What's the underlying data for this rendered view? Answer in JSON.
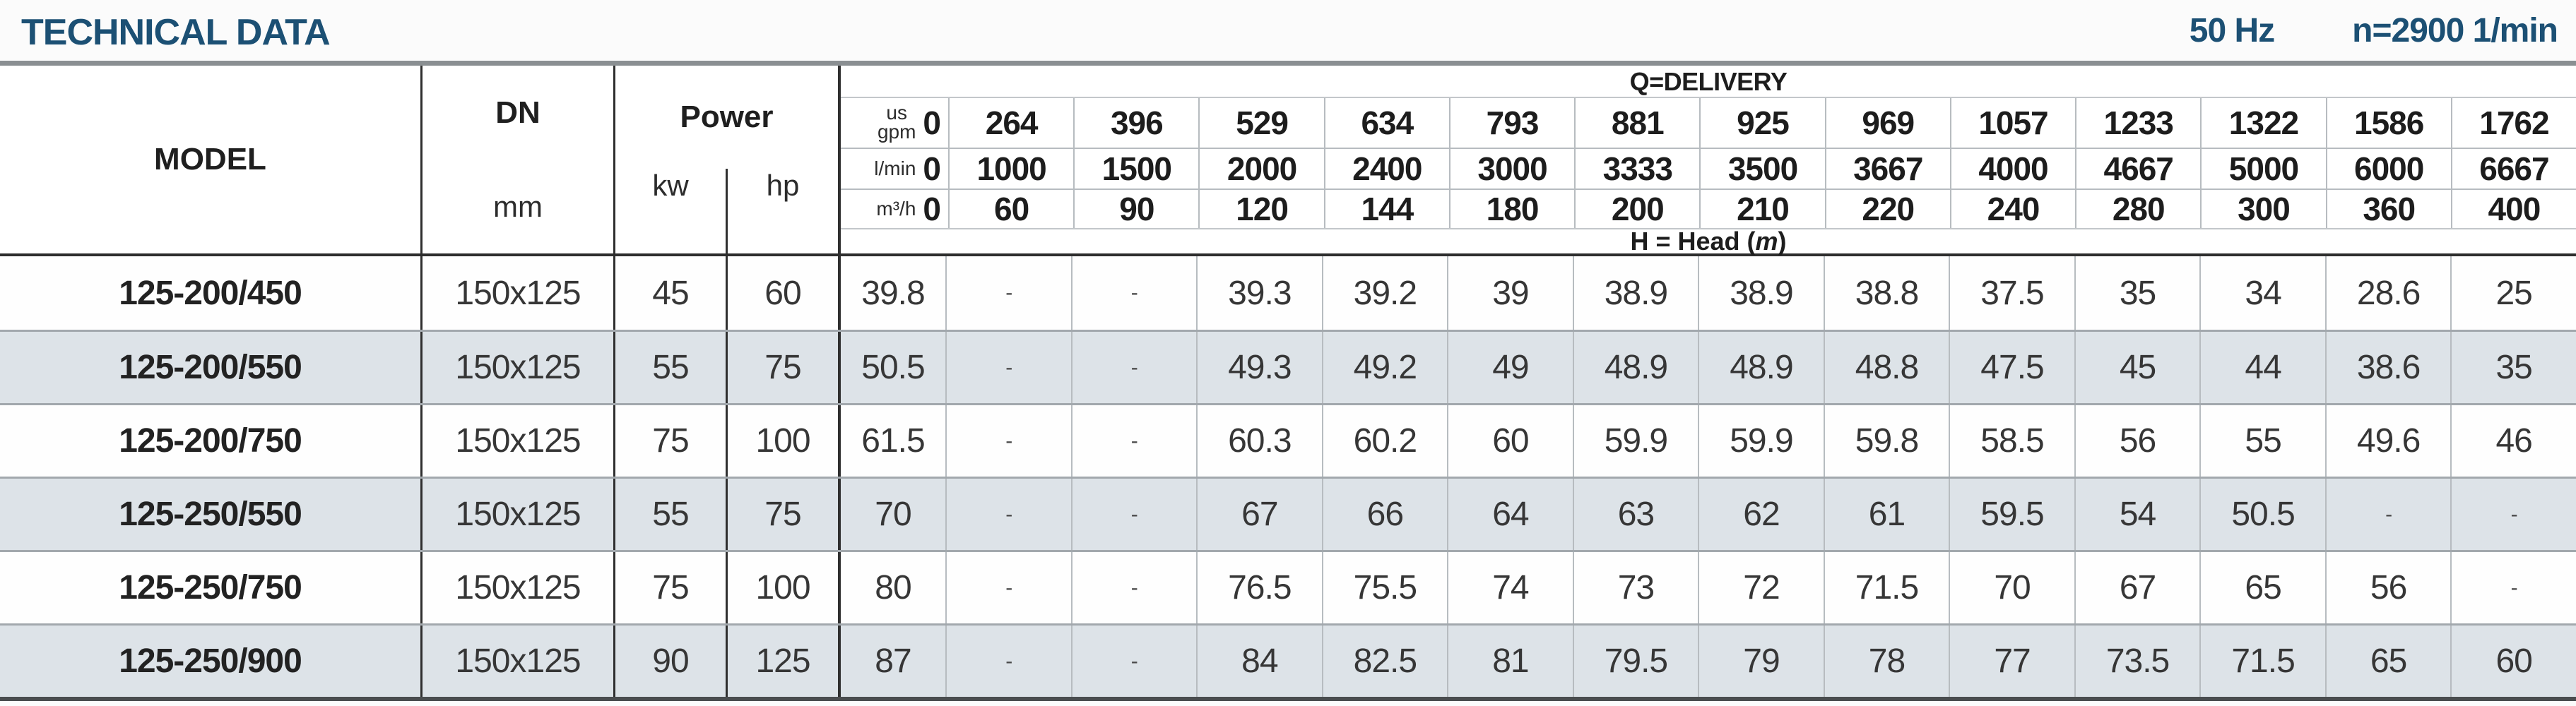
{
  "page": {
    "title": "TECHNICAL DATA",
    "frequency": "50 Hz",
    "speed": "n=2900 1/min"
  },
  "table": {
    "headers": {
      "model": "MODEL",
      "dn": "DN",
      "dn_unit": "mm",
      "power": "Power",
      "power_unit_kw": "kw",
      "power_unit_hp": "hp",
      "delivery_title": "Q=DELIVERY",
      "head_note_prefix": "H = Head (",
      "head_note_unit": "m",
      "head_note_suffix": ")"
    },
    "delivery_header_rows": [
      {
        "unit_lines": [
          "us",
          "gpm"
        ],
        "zero": "0",
        "values": [
          "264",
          "396",
          "529",
          "634",
          "793",
          "881",
          "925",
          "969",
          "1057",
          "1233",
          "1322",
          "1586",
          "1762"
        ]
      },
      {
        "unit_lines": [
          "l/min"
        ],
        "zero": "0",
        "values": [
          "1000",
          "1500",
          "2000",
          "2400",
          "3000",
          "3333",
          "3500",
          "3667",
          "4000",
          "4667",
          "5000",
          "6000",
          "6667"
        ]
      },
      {
        "unit_lines": [
          "m³/h"
        ],
        "zero": "0",
        "values": [
          "60",
          "90",
          "120",
          "144",
          "180",
          "200",
          "210",
          "220",
          "240",
          "280",
          "300",
          "360",
          "400"
        ]
      }
    ],
    "rows": [
      {
        "model": "125-200/450",
        "dn": "150x125",
        "kw": "45",
        "hp": "60",
        "head_values": [
          "39.8",
          "-",
          "-",
          "39.3",
          "39.2",
          "39",
          "38.9",
          "38.9",
          "38.8",
          "37.5",
          "35",
          "34",
          "28.6",
          "25"
        ]
      },
      {
        "model": "125-200/550",
        "dn": "150x125",
        "kw": "55",
        "hp": "75",
        "head_values": [
          "50.5",
          "-",
          "-",
          "49.3",
          "49.2",
          "49",
          "48.9",
          "48.9",
          "48.8",
          "47.5",
          "45",
          "44",
          "38.6",
          "35"
        ]
      },
      {
        "model": "125-200/750",
        "dn": "150x125",
        "kw": "75",
        "hp": "100",
        "head_values": [
          "61.5",
          "-",
          "-",
          "60.3",
          "60.2",
          "60",
          "59.9",
          "59.9",
          "59.8",
          "58.5",
          "56",
          "55",
          "49.6",
          "46"
        ]
      },
      {
        "model": "125-250/550",
        "dn": "150x125",
        "kw": "55",
        "hp": "75",
        "head_values": [
          "70",
          "-",
          "-",
          "67",
          "66",
          "64",
          "63",
          "62",
          "61",
          "59.5",
          "54",
          "50.5",
          "-",
          "-"
        ]
      },
      {
        "model": "125-250/750",
        "dn": "150x125",
        "kw": "75",
        "hp": "100",
        "head_values": [
          "80",
          "-",
          "-",
          "76.5",
          "75.5",
          "74",
          "73",
          "72",
          "71.5",
          "70",
          "67",
          "65",
          "56",
          "-"
        ]
      },
      {
        "model": "125-250/900",
        "dn": "150x125",
        "kw": "90",
        "hp": "125",
        "head_values": [
          "87",
          "-",
          "-",
          "84",
          "82.5",
          "81",
          "79.5",
          "79",
          "78",
          "77",
          "73.5",
          "71.5",
          "65",
          "60"
        ]
      }
    ]
  }
}
